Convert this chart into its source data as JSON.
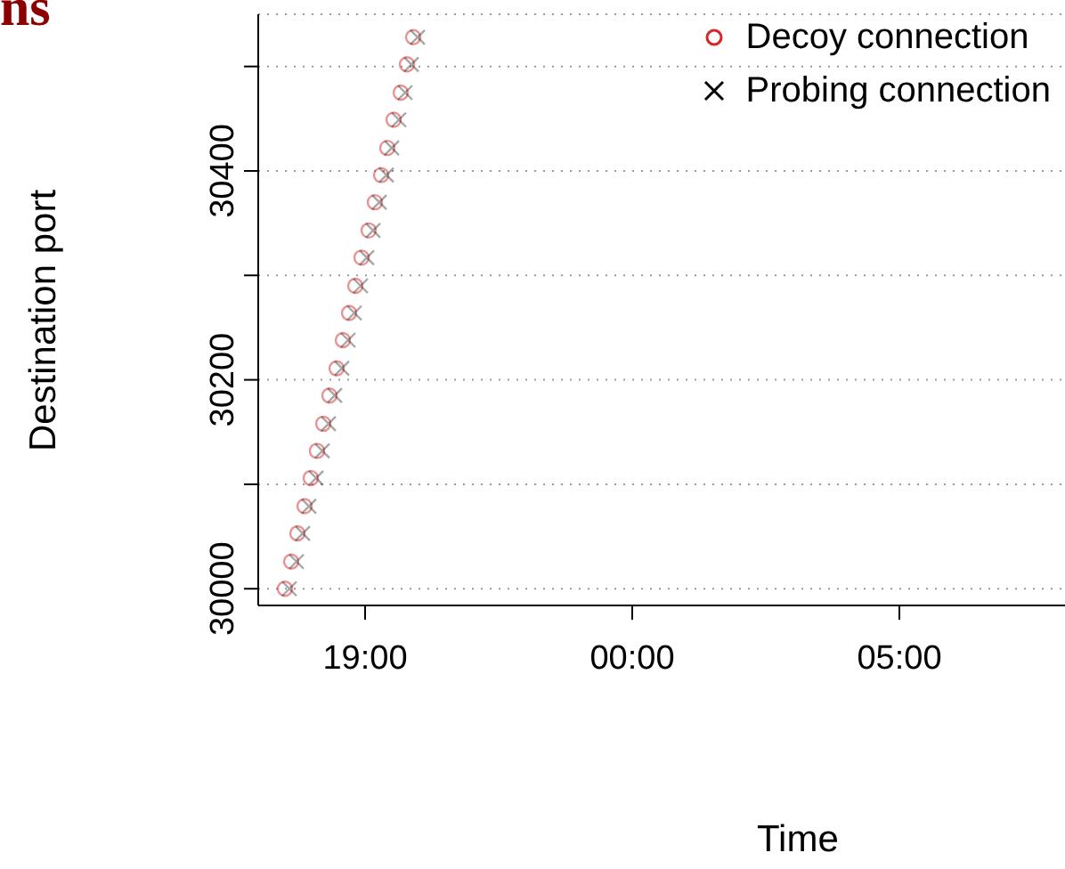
{
  "chart_data": {
    "type": "scatter",
    "title": "ns",
    "xlabel": "Time",
    "ylabel": "Destination port",
    "xlim": [
      "--01-01T17:00",
      "--01-02T08:06"
    ],
    "xticks": [
      {
        "value": "--01-01T19:00",
        "label": "19:00"
      },
      {
        "value": "--01-02T00:00",
        "label": "00:00"
      },
      {
        "value": "--01-02T05:00",
        "label": "05:00"
      }
    ],
    "ylim": [
      29984,
      30550
    ],
    "yticks": [
      30000,
      {
        "value": 30100,
        "label": null
      },
      30200,
      {
        "value": 30300,
        "label": null
      },
      30400,
      {
        "value": 30500,
        "label": null
      }
    ],
    "grid": "y",
    "legend": "top right",
    "series": [
      {
        "name": "Decoy connection",
        "color": "#d62728",
        "marker": "circle",
        "x": [
          "--01-01T17:30",
          "--01-01T17:37",
          "--01-01T17:44",
          "--01-01T17:52",
          "--01-01T17:59",
          "--01-01T18:06",
          "--01-01T18:13",
          "--01-01T18:20",
          "--01-01T18:28",
          "--01-01T18:35",
          "--01-01T18:42",
          "--01-01T18:49",
          "--01-01T18:56",
          "--01-01T19:04",
          "--01-01T19:11",
          "--01-01T19:18",
          "--01-01T19:25",
          "--01-01T19:32",
          "--01-01T19:40",
          "--01-01T19:47",
          "--01-01T19:54"
        ],
        "values": [
          30000,
          30026,
          30053,
          30079,
          30106,
          30132,
          30158,
          30185,
          30211,
          30238,
          30264,
          30290,
          30317,
          30343,
          30370,
          30396,
          30422,
          30449,
          30475,
          30502,
          30528
        ]
      },
      {
        "name": "Probing connection",
        "color": "#000000",
        "marker": "cross",
        "x": [
          "--01-01T17:35",
          "--01-01T17:43",
          "--01-01T17:50",
          "--01-01T17:57",
          "--01-01T18:05",
          "--01-01T18:12",
          "--01-01T18:19",
          "--01-01T18:26",
          "--01-01T18:34",
          "--01-01T18:41",
          "--01-01T18:48",
          "--01-01T18:55",
          "--01-01T19:02",
          "--01-01T19:09",
          "--01-01T19:16",
          "--01-01T19:24",
          "--01-01T19:30",
          "--01-01T19:38",
          "--01-01T19:45",
          "--01-01T19:52",
          "--01-01T19:59"
        ],
        "values": [
          30000,
          30026,
          30053,
          30079,
          30106,
          30132,
          30158,
          30185,
          30211,
          30238,
          30264,
          30290,
          30317,
          30343,
          30370,
          30396,
          30422,
          30449,
          30475,
          30502,
          30528
        ]
      }
    ]
  }
}
